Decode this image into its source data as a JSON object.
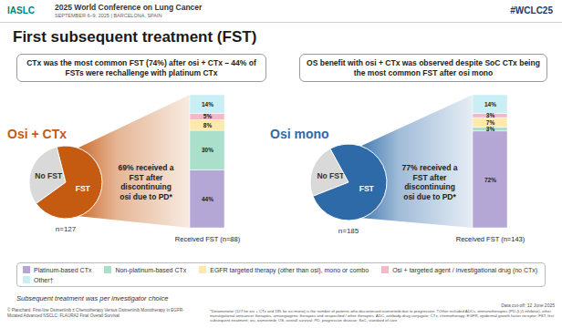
{
  "header": {
    "org": "IASLC",
    "conference": "2025 World Conference on Lung Cancer",
    "dates": "SEPTEMBER 6–9, 2025 | BARCELONA, SPAIN",
    "hashtag": "#WCLC25"
  },
  "title": "First subsequent treatment (FST)",
  "callouts": [
    "CTx was the most common FST (74%) after osi + CTx – 44% of FSTs were rechallenge with platinum CTx",
    "OS benefit with osi + CTx was observed despite SoC CTx being the most common FST after osi mono"
  ],
  "note": "Subsequent treatment was per investigator choice",
  "footer": {
    "citation": "© Planchard. First-line Osimertinib ± Chemotherapy Versus Osimertinib Monotherapy in EGFR-Mutated Advanced NSCLC: FLAURA2 Final Overall Survival",
    "data_cutoff": "Data cut-off: 12 June 2025",
    "footnote": "*Denominator (127 for osi + CTx and 185 for osi mono) is the number of patients who discontinued osimertinib due to progression. †Other included ADCs, immunotherapies (PD-(L)1 inhibitor), other investigational anticancer therapies, antiangiogenic therapies and unspecified / other therapies. ADC, antibody-drug conjugate; CTx, chemotherapy; EGFR, epidermal growth factor receptor; FST, first subsequent treatment; osi, osimertinib; OS, overall survival; PD, progressive disease; SoC, standard of care"
  },
  "chart_data": [
    {
      "type": "pie",
      "title": "Osi + CTx",
      "categories": [
        "No FST",
        "FST"
      ],
      "values": [
        31,
        69
      ],
      "colors": [
        "#d9d9d9",
        "#c55a11"
      ],
      "annotations": [
        "n=127"
      ]
    },
    {
      "type": "bar",
      "stacked": true,
      "data_labels": true,
      "tick_labels": "x",
      "legend": "bottom",
      "annotations": [
        "69% received a FST after discontinuing osi due to PD*"
      ],
      "categories": [
        "Received FST (n=88)"
      ],
      "series": [
        {
          "name": "Platinum-based CTx",
          "color": "#b4a7d6",
          "values": [
            44
          ],
          "value_labels": [
            "44%"
          ]
        },
        {
          "name": "Non-platinum-based CTx",
          "color": "#a9dfcb",
          "values": [
            30
          ],
          "value_labels": [
            "30%"
          ]
        },
        {
          "name": "EGFR targeted therapy (other than osi), mono or combo",
          "color": "#fde9a9",
          "values": [
            8
          ],
          "value_labels": [
            "8%"
          ]
        },
        {
          "name": "Osi + targeted agent / investigational drug (no CTx)",
          "color": "#f5b8c8",
          "values": [
            5
          ],
          "value_labels": [
            "5%"
          ]
        },
        {
          "name": "Other†",
          "color": "#c9eef3",
          "values": [
            14
          ],
          "value_labels": [
            "14%"
          ]
        }
      ]
    },
    {
      "type": "pie",
      "title": "Osi mono",
      "categories": [
        "No FST",
        "FST"
      ],
      "values": [
        23,
        77
      ],
      "colors": [
        "#d9d9d9",
        "#2e6aa8"
      ],
      "annotations": [
        "n=185"
      ]
    },
    {
      "type": "bar",
      "stacked": true,
      "data_labels": true,
      "tick_labels": "x",
      "annotations": [
        "77% received a FST after discontinuing osi due to PD*"
      ],
      "categories": [
        "Received FST (n=143)"
      ],
      "series": [
        {
          "name": "Platinum-based CTx",
          "color": "#b4a7d6",
          "values": [
            72
          ],
          "value_labels": [
            "72%"
          ]
        },
        {
          "name": "Non-platinum-based CTx",
          "color": "#a9dfcb",
          "values": [
            3
          ],
          "value_labels": [
            "3%"
          ]
        },
        {
          "name": "EGFR targeted therapy (other than osi), mono or combo",
          "color": "#fde9a9",
          "values": [
            7
          ],
          "value_labels": [
            "7%"
          ]
        },
        {
          "name": "Osi + targeted agent / investigational drug (no CTx)",
          "color": "#f5b8c8",
          "values": [
            3
          ],
          "value_labels": [
            "3%"
          ]
        },
        {
          "name": "Other†",
          "color": "#c9eef3",
          "values": [
            14
          ],
          "value_labels": [
            "14%"
          ]
        }
      ]
    }
  ]
}
